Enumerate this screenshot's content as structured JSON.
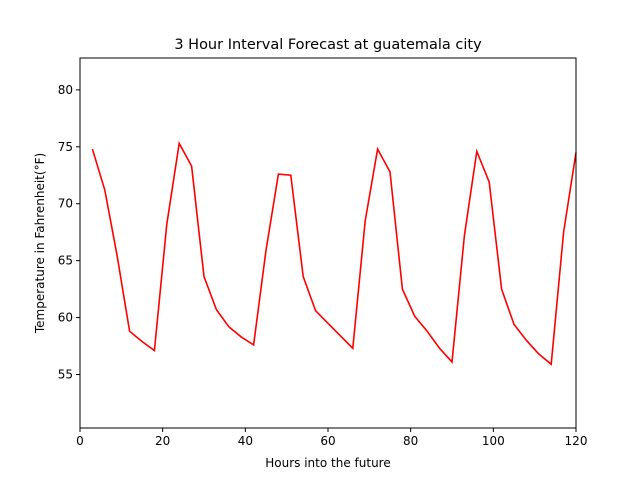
{
  "chart_data": {
    "type": "line",
    "title": "3 Hour Interval Forecast at guatemala city",
    "xlabel": "Hours into the future",
    "ylabel": "Temperature in Fahrenheit(°F)",
    "xlim": [
      0,
      120
    ],
    "ylim": [
      50.3,
      82.8
    ],
    "xticks": [
      0,
      20,
      40,
      60,
      80,
      100,
      120
    ],
    "yticks": [
      55,
      60,
      65,
      70,
      75,
      80
    ],
    "grid": false,
    "series": [
      {
        "color": "#ff0000",
        "x": [
          3,
          6,
          9,
          12,
          15,
          18,
          21,
          24,
          27,
          30,
          33,
          36,
          39,
          42,
          45,
          48,
          51,
          54,
          57,
          60,
          63,
          66,
          69,
          72,
          75,
          78,
          81,
          84,
          87,
          90,
          93,
          96,
          99,
          102,
          105,
          108,
          111,
          114,
          117,
          120
        ],
        "y": [
          74.8,
          71.2,
          65.4,
          58.8,
          57.9,
          57.1,
          68.2,
          75.3,
          73.3,
          63.6,
          60.7,
          59.2,
          58.3,
          57.6,
          65.9,
          72.6,
          72.5,
          63.6,
          60.6,
          59.5,
          58.4,
          57.3,
          68.5,
          74.8,
          72.8,
          62.5,
          60.1,
          58.8,
          57.3,
          56.1,
          67.2,
          74.6,
          71.9,
          62.5,
          59.4,
          58.0,
          56.8,
          55.9,
          67.5,
          74.5
        ]
      }
    ]
  }
}
